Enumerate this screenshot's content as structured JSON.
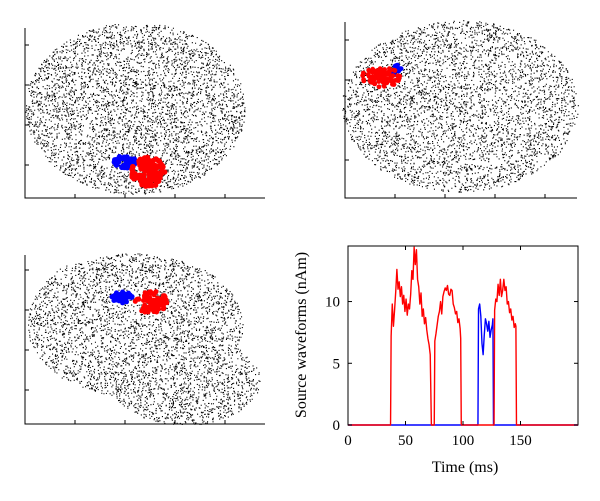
{
  "figure": {
    "panels": [
      {
        "view": "top",
        "dot_color": "#000000",
        "cluster_colors": [
          "#0000ff",
          "#ff0000"
        ]
      },
      {
        "view": "rear",
        "dot_color": "#000000",
        "cluster_colors": [
          "#0000ff",
          "#ff0000"
        ]
      },
      {
        "view": "side",
        "dot_color": "#000000",
        "cluster_colors": [
          "#0000ff",
          "#ff0000"
        ]
      }
    ]
  },
  "chart_data": {
    "type": "line",
    "title": "",
    "xlabel": "Time (ms)",
    "ylabel": "Source waveforms (nAm)",
    "xlim": [
      0,
      200
    ],
    "ylim": [
      0,
      14.5
    ],
    "xticks": [
      0,
      50,
      100,
      150
    ],
    "yticks": [
      0,
      5,
      10
    ],
    "grid": false,
    "series": [
      {
        "color": "#ff0000",
        "x": [
          0,
          37,
          37.5,
          38.5,
          39.5,
          40.5,
          41.5,
          42.5,
          43.5,
          44.5,
          45.5,
          46.5,
          47.5,
          48.5,
          49.5,
          50.5,
          51.5,
          52.5,
          53.5,
          54.5,
          55.5,
          56.5,
          57.5,
          58.5,
          59.5,
          60.5,
          61.5,
          62.5,
          63.5,
          64.5,
          65.5,
          66.5,
          67.5,
          68.5,
          69.5,
          70.5,
          71.5,
          72.5,
          73,
          73.5,
          75,
          75.5,
          76.5,
          77.5,
          78.5,
          79.5,
          80.5,
          81.5,
          82.5,
          83.5,
          84.5,
          85.5,
          86.5,
          87.5,
          88.5,
          89.5,
          90.5,
          91.5,
          92.5,
          93.5,
          94.5,
          95.5,
          96.5,
          97.5,
          98,
          98.5,
          127,
          127.5,
          128.5,
          129.5,
          130.5,
          131.5,
          132.5,
          133.5,
          134.5,
          135.5,
          136.5,
          137.5,
          138.5,
          139.5,
          140.5,
          141.5,
          142.5,
          143.5,
          144.5,
          145.5,
          146,
          146.5,
          148,
          148.5,
          200
        ],
        "y": [
          0,
          0,
          7.2,
          9.8,
          8.0,
          9.3,
          10.8,
          12.6,
          11.0,
          11.6,
          10.4,
          11.2,
          9.8,
          10.5,
          9.2,
          10.2,
          8.9,
          9.8,
          9.4,
          10.6,
          12.5,
          11.8,
          14.4,
          13.0,
          14.2,
          11.8,
          11.2,
          9.8,
          10.7,
          8.8,
          9.4,
          8.2,
          8.7,
          7.7,
          7.0,
          6.5,
          5.7,
          0,
          0,
          0,
          0,
          6.8,
          7.4,
          8.1,
          8.8,
          9.2,
          10.0,
          9.0,
          10.4,
          10.8,
          11.1,
          10.9,
          11.3,
          10.6,
          10.5,
          11.0,
          10.9,
          9.8,
          9.5,
          9.0,
          9.2,
          8.3,
          8.6,
          7.8,
          7.0,
          0,
          0,
          9.3,
          10.2,
          10.0,
          11.4,
          10.5,
          11.8,
          10.4,
          10.9,
          11.8,
          10.9,
          11.2,
          9.8,
          10.0,
          9.1,
          9.4,
          8.5,
          8.8,
          7.9,
          8.2,
          8.0,
          0,
          0,
          0,
          0
        ]
      },
      {
        "color": "#0000ff",
        "x": [
          0,
          113,
          113.5,
          114.5,
          115.5,
          116.5,
          117.5,
          118.5,
          119.5,
          120.5,
          121.5,
          122.5,
          123.5,
          124.5,
          125.5,
          126,
          126.5,
          200
        ],
        "y": [
          0,
          0,
          9.4,
          9.8,
          8.8,
          6.6,
          5.7,
          7.3,
          8.6,
          8.2,
          7.6,
          8.4,
          7.1,
          7.7,
          8.1,
          8.6,
          0,
          0
        ]
      }
    ]
  }
}
